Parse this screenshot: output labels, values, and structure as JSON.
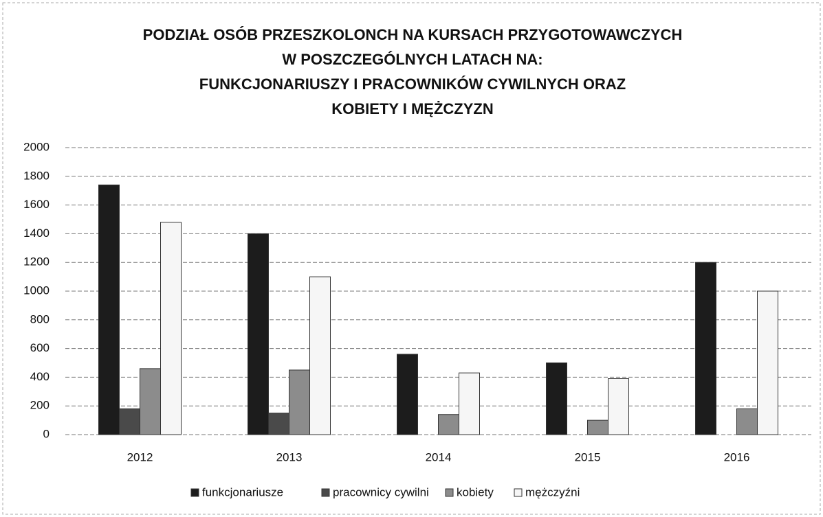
{
  "chart_data": {
    "type": "bar",
    "title": [
      "PODZIAŁ OSÓB PRZESZKOLONCH NA KURSACH PRZYGOTOWAWCZYCH",
      "W POSZCZEGÓLNYCH LATACH NA:",
      "FUNKCJONARIUSZY I PRACOWNIKÓW CYWILNYCH ORAZ",
      "KOBIETY I MĘŻCZYZN"
    ],
    "categories": [
      "2012",
      "2013",
      "2014",
      "2015",
      "2016"
    ],
    "series": [
      {
        "name": "funkcjonariusze",
        "color": "#1c1c1c",
        "values": [
          1740,
          1400,
          560,
          500,
          1200
        ]
      },
      {
        "name": "pracownicy cywilni",
        "color": "#4a4a4a",
        "values": [
          180,
          150,
          0,
          0,
          0
        ]
      },
      {
        "name": "kobiety",
        "color": "#8c8c8c",
        "values": [
          460,
          450,
          140,
          100,
          180
        ]
      },
      {
        "name": "mężczyźni",
        "color": "#f6f6f6",
        "values": [
          1480,
          1100,
          430,
          390,
          1000
        ]
      }
    ],
    "ylim": [
      0,
      2000
    ],
    "yticks": [
      0,
      200,
      400,
      600,
      800,
      1000,
      1200,
      1400,
      1600,
      1800,
      2000
    ],
    "grid": true,
    "legend": "bottom"
  }
}
